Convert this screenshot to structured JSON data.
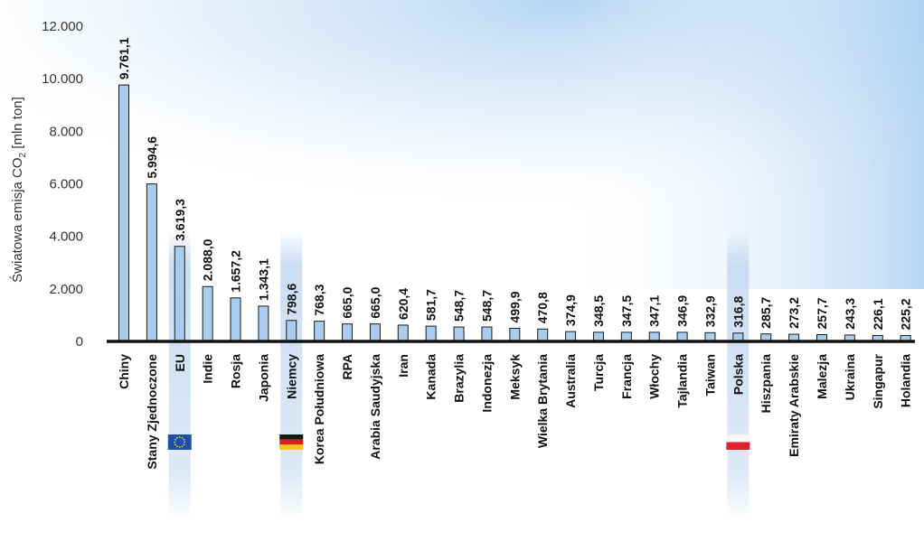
{
  "chart_data": {
    "type": "bar",
    "ylabel": "Światowa emisja CO",
    "ylabel_sub": "2",
    "ylabel_unit": " [mln ton]",
    "ylim": [
      0,
      12000
    ],
    "yticks": [
      "0",
      "2.000",
      "4.000",
      "6.000",
      "8.000",
      "10.000",
      "12.000"
    ],
    "categories": [
      "Chiny",
      "Stany Zjednoczone",
      "EU",
      "Indie",
      "Rosja",
      "Japonia",
      "Niemcy",
      "Korea Południowa",
      "RPA",
      "Arabia Saudyjska",
      "Iran",
      "Kanada",
      "Brazylia",
      "Indonezja",
      "Meksyk",
      "Wielka Brytania",
      "Australia",
      "Turcja",
      "Francja",
      "Włochy",
      "Tajlandia",
      "Taiwan",
      "Polska",
      "Hiszpania",
      "Emiraty Arabskie",
      "Malezja",
      "Ukraina",
      "Singapur",
      "Holandia"
    ],
    "values": [
      9761.1,
      5994.6,
      3619.3,
      2088.0,
      1657.2,
      1343.1,
      798.6,
      768.3,
      665.0,
      665.0,
      620.4,
      581.7,
      548.7,
      548.7,
      499.9,
      470.8,
      374.9,
      348.5,
      347.5,
      347.1,
      346.9,
      332.9,
      316.8,
      285.7,
      273.2,
      257.7,
      243.3,
      226.1,
      225.2
    ],
    "value_labels": [
      "9.761,1",
      "5.994,6",
      "3.619,3",
      "2.088,0",
      "1.657,2",
      "1.343,1",
      "798,6",
      "768,3",
      "665,0",
      "665,0",
      "620,4",
      "581,7",
      "548,7",
      "548,7",
      "499,9",
      "470,8",
      "374,9",
      "348,5",
      "347,5",
      "347,1",
      "346,9",
      "332,9",
      "316,8",
      "285,7",
      "273,2",
      "257,7",
      "243,3",
      "226,1",
      "225,2"
    ],
    "highlighted": [
      "EU",
      "Niemcy",
      "Polska"
    ],
    "flags": {
      "EU": "eu-flag-icon",
      "Niemcy": "germany-flag-icon",
      "Polska": "poland-flag-icon"
    },
    "colors": {
      "bar_fill": "#a9cdee",
      "bar_stroke": "#1a1a1a",
      "axis": "#111111",
      "highlight": "#b8d2ee"
    },
    "grid": false,
    "legend": "none"
  }
}
